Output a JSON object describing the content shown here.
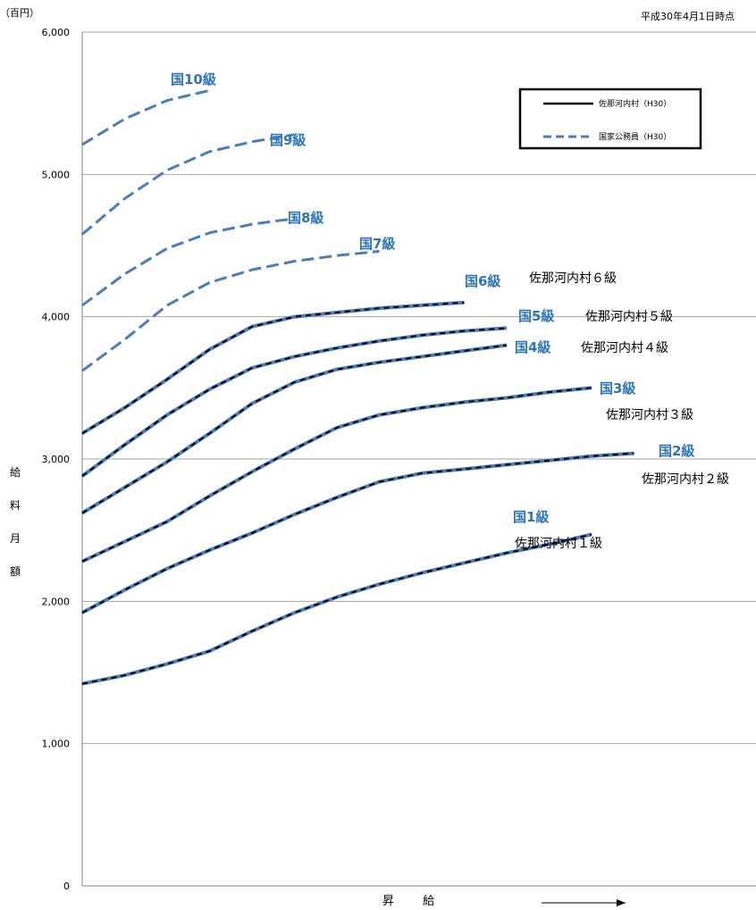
{
  "unit_label": "（百円）",
  "date_note": "平成30年4月1日時点",
  "y_axis_label": [
    "給",
    "料",
    "月",
    "額"
  ],
  "x_axis_label": "昇 給",
  "legend": {
    "village": "佐那河内村（H30）",
    "national": "国家公務員（H30）"
  },
  "colors": {
    "national": "#4a7ebb",
    "village": "#000000",
    "label_national": "#2e75b6",
    "grid": "#a6a6a6"
  },
  "chart_data": {
    "type": "line",
    "ylim": [
      0,
      6000
    ],
    "yticks": [
      "0",
      "1,000",
      "2,000",
      "3,000",
      "4,000",
      "5,000",
      "6,000"
    ],
    "series": [
      {
        "name": "国1級",
        "village_label": "佐那河内村１級",
        "values": [
          1420,
          1480,
          1560,
          1650,
          1790,
          1920,
          2030,
          2120,
          2200,
          2270,
          2340,
          2400,
          2470
        ]
      },
      {
        "name": "国2級",
        "village_label": "佐那河内村２級",
        "values": [
          1920,
          2080,
          2230,
          2360,
          2480,
          2610,
          2730,
          2840,
          2900,
          2930,
          2960,
          2990,
          3020,
          3040
        ]
      },
      {
        "name": "国3級",
        "village_label": "佐那河内村３級",
        "values": [
          2280,
          2420,
          2560,
          2740,
          2910,
          3070,
          3220,
          3310,
          3360,
          3400,
          3430,
          3470,
          3500
        ]
      },
      {
        "name": "国4級",
        "village_label": "佐那河内村４級",
        "values": [
          2620,
          2800,
          2980,
          3180,
          3390,
          3540,
          3630,
          3680,
          3720,
          3760,
          3800
        ]
      },
      {
        "name": "国5級",
        "village_label": "佐那河内村５級",
        "values": [
          2880,
          3100,
          3310,
          3490,
          3640,
          3720,
          3780,
          3830,
          3870,
          3900,
          3920
        ]
      },
      {
        "name": "国6級",
        "village_label": "佐那河内村６級",
        "values": [
          3180,
          3360,
          3560,
          3770,
          3930,
          4000,
          4030,
          4060,
          4080,
          4100
        ]
      },
      {
        "name": "国7級",
        "values": [
          3620,
          3840,
          4080,
          4240,
          4330,
          4390,
          4430,
          4460
        ]
      },
      {
        "name": "国8級",
        "values": [
          4080,
          4300,
          4480,
          4590,
          4650,
          4690
        ]
      },
      {
        "name": "国9級",
        "values": [
          4580,
          4830,
          5030,
          5160,
          5230,
          5280
        ]
      },
      {
        "name": "国10級",
        "values": [
          5210,
          5390,
          5520,
          5590
        ]
      }
    ]
  }
}
